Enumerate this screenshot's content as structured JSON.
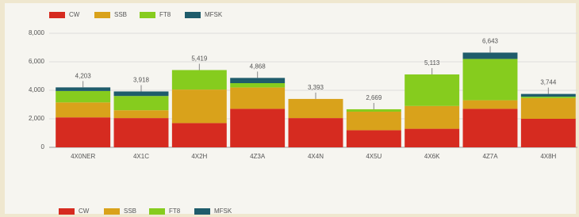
{
  "chart_data": {
    "type": "stacked_bar",
    "categories": [
      "4X0NER",
      "4X1C",
      "4X2H",
      "4Z3A",
      "4X4N",
      "4X5U",
      "4X6K",
      "4Z7A",
      "4X8H"
    ],
    "series": [
      {
        "name": "CW",
        "color": "#d62b20",
        "values": [
          2100,
          2050,
          1700,
          2700,
          2050,
          1200,
          1300,
          2700,
          2000
        ]
      },
      {
        "name": "SSB",
        "color": "#d9a21b",
        "values": [
          1050,
          550,
          2350,
          1500,
          1343,
          1300,
          1600,
          600,
          1450
        ]
      },
      {
        "name": "FT8",
        "color": "#86cc1e",
        "values": [
          800,
          1000,
          1369,
          300,
          0,
          169,
          2213,
          2900,
          100
        ]
      },
      {
        "name": "MFSK",
        "color": "#1f5c6b",
        "values": [
          253,
          318,
          0,
          368,
          0,
          0,
          0,
          443,
          194
        ]
      }
    ],
    "totals": [
      4203,
      3918,
      5419,
      4868,
      3393,
      2669,
      5113,
      6643,
      3744
    ],
    "total_labels": [
      "4,203",
      "3,918",
      "5,419",
      "4,868",
      "3,393",
      "2,669",
      "5,113",
      "6,643",
      "3,744"
    ],
    "ylim": [
      0,
      8000
    ],
    "yticks": [
      0,
      {
        "value": 2000,
        "label": "2,000"
      },
      {
        "value": 4000,
        "label": "4,000"
      },
      {
        "value": 6000,
        "label": "6,000"
      },
      {
        "value": 8000,
        "label": "8,000"
      }
    ],
    "grid": true
  }
}
